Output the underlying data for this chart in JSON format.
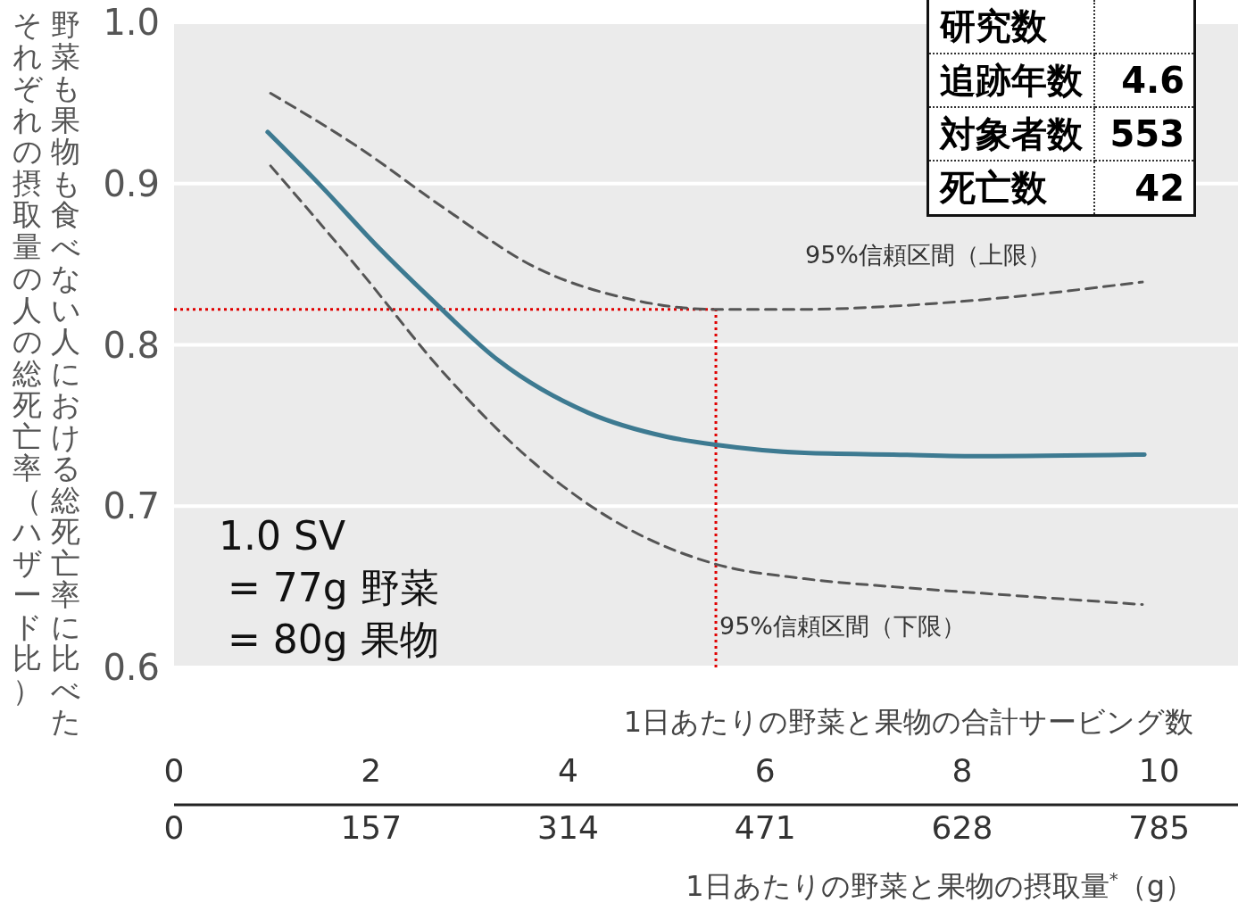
{
  "chart_data": [
    {
      "type": "line",
      "ylabel": "野菜も果物も食べない人における総死亡率に比べたそれぞれの摂取量の人の総死亡率（ハザード比）",
      "xlabel": "1日あたりの野菜と果物の合計サービング数",
      "x2label": "1日あたりの野菜と果物の摂取量$^{*}$（g）",
      "xlim": [
        0,
        10.8
      ],
      "xticks": [
        0,
        2,
        4,
        6,
        8,
        10
      ],
      "x2lim": [
        0,
        847.8
      ],
      "x2ticks": [
        0,
        157,
        314,
        471,
        628,
        785
      ],
      "ylim": [
        0.6,
        1.0
      ],
      "yticks": [
        0.6,
        0.7,
        0.8,
        0.9,
        {
          "value": 1.0,
          "label": "1.0"
        }
      ],
      "grid": "y",
      "marker": "none",
      "series": [
        {
          "color": "#3d7a91",
          "line_style": "solid",
          "x": [
            0.95,
            1.5,
            2.05,
            2.6,
            3.3,
            4.2,
            5.0,
            5.5,
            6.4,
            7.3,
            8.2,
            9.85
          ],
          "values": [
            0.932,
            0.898,
            0.862,
            0.829,
            0.79,
            0.758,
            0.743,
            0.738,
            0.733,
            0.732,
            0.731,
            0.732
          ]
        },
        {
          "color": "#555555",
          "line_style": "dashed",
          "x": [
            0.98,
            1.86,
            2.76,
            3.67,
            4.58,
            5.5,
            6.4,
            7.3,
            8.2,
            9.83
          ],
          "values": [
            0.956,
            0.923,
            0.884,
            0.848,
            0.829,
            0.822,
            0.822,
            0.824,
            0.828,
            0.839
          ]
        },
        {
          "color": "#555555",
          "line_style": "dashed",
          "x": [
            0.98,
            1.86,
            2.76,
            3.67,
            4.58,
            5.5,
            6.4,
            7.3,
            8.2,
            9.83
          ],
          "values": [
            0.911,
            0.848,
            0.781,
            0.726,
            0.687,
            0.664,
            0.655,
            0.65,
            0.646,
            0.639
          ]
        }
      ],
      "ref_lines": [
        {
          "axis": "x",
          "value": 5.5,
          "color": "#e00000",
          "line_style": "dotted"
        },
        {
          "axis": "y",
          "value": 0.822,
          "color": "#e00000",
          "line_style": "dotted"
        }
      ],
      "annotations": [
        "95%信頼区間（上限）",
        "95%信頼区間（下限）",
        "1.0 SV",
        "= 77g 野菜",
        "= 80g 果物"
      ]
    },
    {
      "type": "other",
      "y_categories": [
        "研究数",
        "追跡年数",
        "対象者数",
        "死亡数"
      ],
      "annotations": [
        "4.6",
        "553",
        "42"
      ]
    }
  ]
}
